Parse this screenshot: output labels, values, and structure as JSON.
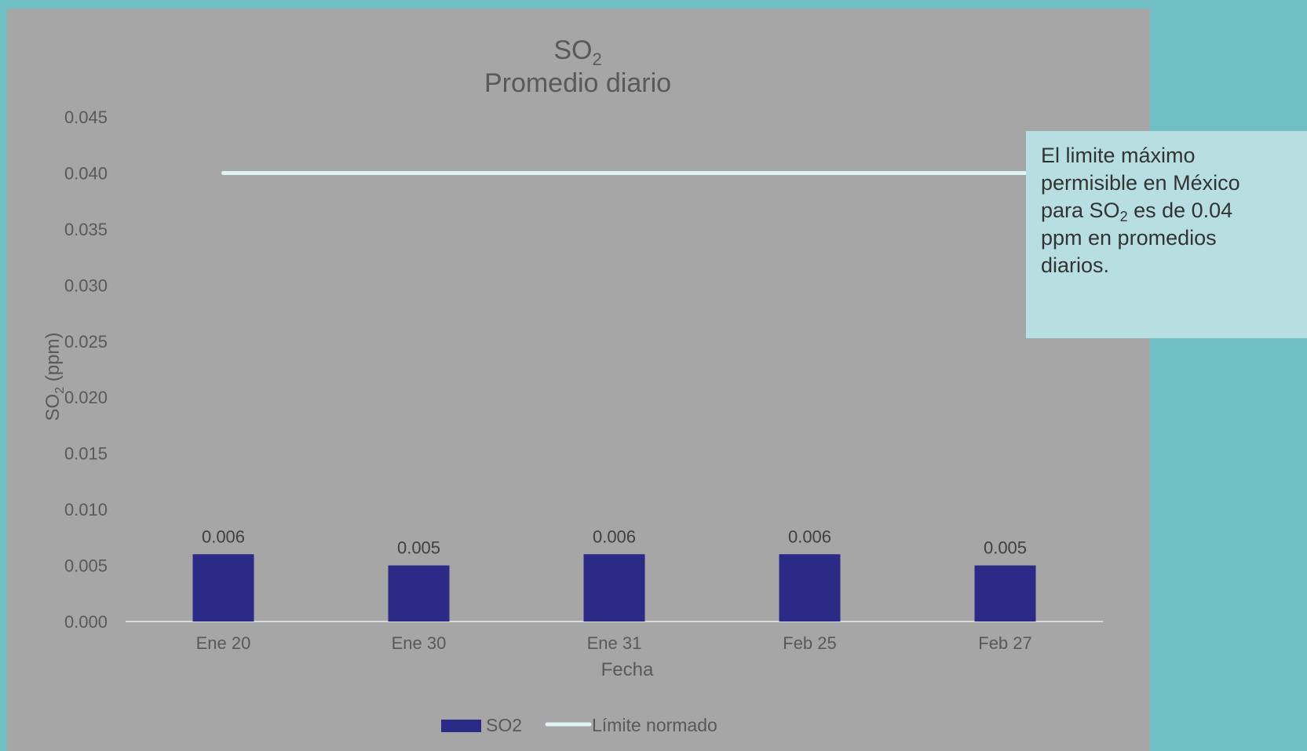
{
  "colors": {
    "page_background": "#6fbfc4",
    "chart_background": "#a6a6a6",
    "bar": "#2b2a86",
    "limit_line": "#dff3f4",
    "axis_line": "#d9d9d9",
    "note_background": "#b7dfe2"
  },
  "chart_data": {
    "type": "bar",
    "title": "SO",
    "title_subscript": "2",
    "subtitle": "Promedio diario",
    "xlabel": "Fecha",
    "ylabel": "SO",
    "ylabel_subscript": "2",
    "ylabel_unit": " (ppm)",
    "categories": [
      "Ene 20",
      "Ene 30",
      "Ene 31",
      "Feb 25",
      "Feb 27"
    ],
    "series": [
      {
        "name": "SO2",
        "type": "bar",
        "values": [
          0.006,
          0.005,
          0.006,
          0.006,
          0.005
        ]
      },
      {
        "name": "Límite normado",
        "type": "line",
        "values": [
          0.04,
          0.04,
          0.04,
          0.04,
          0.04
        ]
      }
    ],
    "data_labels": [
      "0.006",
      "0.005",
      "0.006",
      "0.006",
      "0.005"
    ],
    "ylim": [
      0,
      0.045
    ],
    "yticks": [
      "0.000",
      "0.005",
      "0.010",
      "0.015",
      "0.020",
      "0.025",
      "0.030",
      "0.035",
      "0.040",
      "0.045"
    ],
    "grid": false,
    "legend_position": "bottom"
  },
  "note": {
    "line1": "El limite máximo",
    "line2": "permisible en México",
    "line3_pre": "para SO",
    "line3_sub": "2",
    "line3_post": " es de 0.04",
    "line4": "ppm en promedios",
    "line5": "diarios."
  }
}
